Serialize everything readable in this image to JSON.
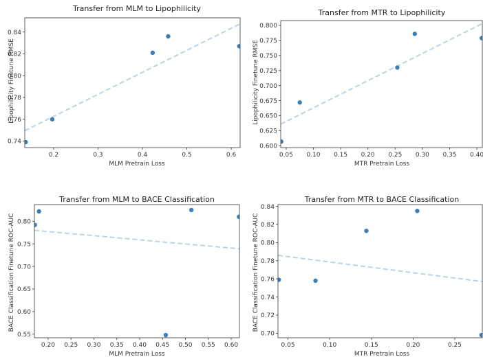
{
  "chart_data": [
    {
      "type": "scatter",
      "title": "Transfer from MLM to Lipophilicity",
      "xlabel": "MLM Pretrain Loss",
      "ylabel": "Lipophilicity Finetune RMSE",
      "xlim": [
        0.135,
        0.62
      ],
      "ylim": [
        0.734,
        0.853
      ],
      "xticks": [
        0.2,
        0.3,
        0.4,
        0.5,
        0.6
      ],
      "xtick_labels": [
        "0.2",
        "0.3",
        "0.4",
        "0.5",
        "0.6"
      ],
      "yticks": [
        0.74,
        0.76,
        0.78,
        0.8,
        0.82,
        0.84
      ],
      "ytick_labels": [
        "0.74",
        "0.76",
        "0.78",
        "0.80",
        "0.82",
        "0.84"
      ],
      "points": [
        {
          "x": 0.137,
          "y": 0.739
        },
        {
          "x": 0.197,
          "y": 0.76
        },
        {
          "x": 0.423,
          "y": 0.821
        },
        {
          "x": 0.458,
          "y": 0.836
        },
        {
          "x": 0.618,
          "y": 0.827
        }
      ],
      "trendline": {
        "x": [
          0.135,
          0.62
        ],
        "y": [
          0.7495,
          0.8475
        ]
      }
    },
    {
      "type": "scatter",
      "title": "Transfer from MTR to Lipophilicity",
      "xlabel": "MTR Pretrain Loss",
      "ylabel": "Lipophilicity Finetune RMSE",
      "xlim": [
        0.04,
        0.41
      ],
      "ylim": [
        0.597,
        0.808
      ],
      "xticks": [
        0.05,
        0.1,
        0.15,
        0.2,
        0.25,
        0.3,
        0.35,
        0.4
      ],
      "xtick_labels": [
        "0.05",
        "0.10",
        "0.15",
        "0.20",
        "0.25",
        "0.30",
        "0.35",
        "0.40"
      ],
      "yticks": [
        0.6,
        0.625,
        0.65,
        0.675,
        0.7,
        0.725,
        0.75,
        0.775,
        0.8
      ],
      "ytick_labels": [
        "0.600",
        "0.625",
        "0.650",
        "0.675",
        "0.700",
        "0.725",
        "0.750",
        "0.775",
        "0.800"
      ],
      "points": [
        {
          "x": 0.041,
          "y": 0.607
        },
        {
          "x": 0.075,
          "y": 0.672
        },
        {
          "x": 0.254,
          "y": 0.73
        },
        {
          "x": 0.286,
          "y": 0.786
        },
        {
          "x": 0.409,
          "y": 0.779
        }
      ],
      "trendline": {
        "x": [
          0.04,
          0.41
        ],
        "y": [
          0.636,
          0.803
        ]
      }
    },
    {
      "type": "scatter",
      "title": "Transfer from MLM to BACE Classification",
      "xlabel": "MLM Pretrain Loss",
      "ylabel": "BACE Classification Finetune ROC-AUC",
      "xlim": [
        0.17,
        0.618
      ],
      "ylim": [
        0.542,
        0.837
      ],
      "xticks": [
        0.2,
        0.25,
        0.3,
        0.35,
        0.4,
        0.45,
        0.5,
        0.55,
        0.6
      ],
      "xtick_labels": [
        "0.20",
        "0.25",
        "0.30",
        "0.35",
        "0.40",
        "0.45",
        "0.50",
        "0.55",
        "0.60"
      ],
      "yticks": [
        0.55,
        0.6,
        0.65,
        0.7,
        0.75,
        0.8
      ],
      "ytick_labels": [
        "0.55",
        "0.60",
        "0.65",
        "0.70",
        "0.75",
        "0.80"
      ],
      "points": [
        {
          "x": 0.171,
          "y": 0.792
        },
        {
          "x": 0.18,
          "y": 0.822
        },
        {
          "x": 0.457,
          "y": 0.548
        },
        {
          "x": 0.513,
          "y": 0.825
        },
        {
          "x": 0.617,
          "y": 0.81
        }
      ],
      "trendline": {
        "x": [
          0.17,
          0.618
        ],
        "y": [
          0.78,
          0.739
        ]
      }
    },
    {
      "type": "scatter",
      "title": "Transfer from MTR to BACE Classification",
      "xlabel": "MTR Pretrain Loss",
      "ylabel": "BACE Classification Finetune ROC-AUC",
      "xlim": [
        0.038,
        0.283
      ],
      "ylim": [
        0.695,
        0.842
      ],
      "xticks": [
        0.05,
        0.1,
        0.15,
        0.2,
        0.25
      ],
      "xtick_labels": [
        "0.05",
        "0.10",
        "0.15",
        "0.20",
        "0.25"
      ],
      "yticks": [
        0.7,
        0.72,
        0.74,
        0.76,
        0.78,
        0.8,
        0.82,
        0.84
      ],
      "ytick_labels": [
        "0.70",
        "0.72",
        "0.74",
        "0.76",
        "0.78",
        "0.80",
        "0.82",
        "0.84"
      ],
      "points": [
        {
          "x": 0.039,
          "y": 0.759
        },
        {
          "x": 0.083,
          "y": 0.758
        },
        {
          "x": 0.144,
          "y": 0.813
        },
        {
          "x": 0.205,
          "y": 0.835
        },
        {
          "x": 0.282,
          "y": 0.698
        }
      ],
      "trendline": {
        "x": [
          0.038,
          0.283
        ],
        "y": [
          0.786,
          0.757
        ]
      }
    }
  ],
  "colors": {
    "point": "#3b7fb6",
    "trendline": "#b8d4ea",
    "frame": "#333333",
    "text": "#222222"
  }
}
